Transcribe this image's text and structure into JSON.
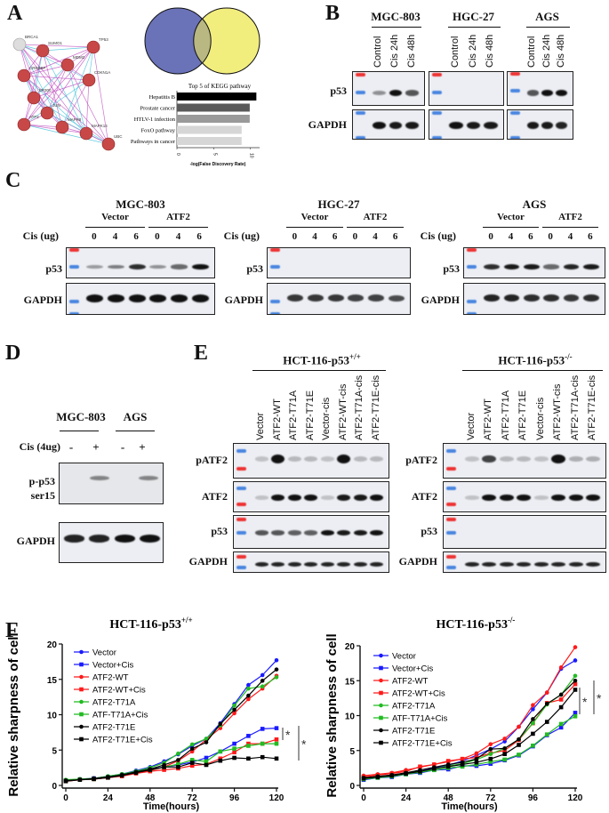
{
  "panelA": {
    "label": "A",
    "network_nodes": [
      "BRCA1",
      "SUMO1",
      "TP53",
      "MDM2",
      "CREBBP",
      "CDKN1A",
      "EP300",
      "JUN",
      "ATF2",
      "MAPK8",
      "MAPK14",
      "UBC"
    ],
    "venn": {
      "left_color": "#6a72b8",
      "right_color": "#f2ee7e",
      "overlap_color": "#b9b882"
    },
    "kegg": {
      "title": "Top 5 of KEGG pathway",
      "xlabel": "-log(False Discovery Rate)",
      "ticks": [
        "0",
        "5",
        "10"
      ],
      "bars": [
        {
          "label": "Hepatitis B",
          "value": 10.8,
          "color": "#000000"
        },
        {
          "label": "Prostate cancer",
          "value": 9.9,
          "color": "#5a5a5a"
        },
        {
          "label": "HTLV-1 infection",
          "value": 9.9,
          "color": "#9a9a9a"
        },
        {
          "label": "FoxO pathway",
          "value": 8.8,
          "color": "#d6d6d6"
        },
        {
          "label": "Pathways in cancer",
          "value": 8.8,
          "color": "#d6d6d6"
        }
      ]
    }
  },
  "panelB": {
    "label": "B",
    "rows": [
      "p53",
      "GAPDH"
    ],
    "groups": [
      {
        "name": "MGC-803",
        "lanes": [
          "Control",
          "Cis 24h",
          "Cis 48h"
        ],
        "p53": [
          0.3,
          0.95,
          0.6
        ],
        "GAPDH": [
          0.95,
          0.9,
          0.9
        ]
      },
      {
        "name": "HGC-27",
        "lanes": [
          "Control",
          "Cis 24h",
          "Cis 48h"
        ],
        "p53": [
          0,
          0,
          0
        ],
        "GAPDH": [
          0.95,
          0.9,
          0.9
        ]
      },
      {
        "name": "AGS",
        "lanes": [
          "Control",
          "Cis 24h",
          "Cis 48h"
        ],
        "p53": [
          0.6,
          0.95,
          0.95
        ],
        "GAPDH": [
          0.9,
          0.9,
          0.85
        ]
      }
    ]
  },
  "panelC": {
    "label": "C",
    "dose_label": "Cis (ug)",
    "rows": [
      "p53",
      "GAPDH"
    ],
    "subgroups": [
      "Vector",
      "ATF2"
    ],
    "doses": [
      "0",
      "4",
      "6",
      "0",
      "4",
      "6"
    ],
    "groups": [
      {
        "name": "MGC-803",
        "p53": [
          0.25,
          0.4,
          0.8,
          0.3,
          0.5,
          1.0
        ],
        "GAPDH": [
          1,
          1,
          1,
          1,
          1,
          1
        ]
      },
      {
        "name": "HGC-27",
        "p53": [
          0,
          0,
          0,
          0,
          0,
          0
        ],
        "GAPDH": [
          0.75,
          0.75,
          0.75,
          0.7,
          0.7,
          0.65
        ]
      },
      {
        "name": "AGS",
        "p53": [
          0.8,
          0.9,
          0.9,
          0.5,
          0.85,
          0.9
        ],
        "GAPDH": [
          0.85,
          0.85,
          0.8,
          0.8,
          0.75,
          0.8
        ]
      }
    ]
  },
  "panelD": {
    "label": "D",
    "groups": [
      "MGC-803",
      "AGS"
    ],
    "dose_label": "Cis (4ug)",
    "treatments": [
      "-",
      "+",
      "-",
      "+"
    ],
    "rows": [
      "p-p53",
      "ser15",
      "GAPDH"
    ],
    "pp53": [
      0,
      0.35,
      0,
      0.35
    ],
    "gapdh": [
      0.85,
      0.85,
      0.95,
      1.0
    ]
  },
  "panelE": {
    "label": "E",
    "lanes": [
      "Vector",
      "ATF2-WT",
      "ATF2-T71A",
      "ATF2-T71E",
      "Vector-cis",
      "ATF2-WT-cis",
      "ATF2-T71A-cis",
      "ATF2-T71E-cis"
    ],
    "rows": [
      "pATF2",
      "ATF2",
      "p53",
      "GAPDH"
    ],
    "groups": [
      {
        "name": "HCT-116-p53",
        "sup": "+/+",
        "pATF2": [
          0.05,
          1,
          0.1,
          0.1,
          0.05,
          1,
          0.1,
          0.1
        ],
        "ATF2": [
          0.05,
          0.95,
          0.95,
          0.95,
          0.05,
          0.9,
          0.9,
          0.95
        ],
        "p53": [
          0.6,
          0.6,
          0.55,
          0.55,
          0.95,
          0.9,
          0.9,
          0.95
        ],
        "GAPDH": [
          0.85,
          0.85,
          0.85,
          0.85,
          0.85,
          0.85,
          0.85,
          0.85
        ]
      },
      {
        "name": "HCT-116-p53",
        "sup": "-/-",
        "pATF2": [
          0.05,
          0.7,
          0.1,
          0.1,
          0.05,
          1,
          0.15,
          0.15
        ],
        "ATF2": [
          0.05,
          0.95,
          0.95,
          0.95,
          0.05,
          0.95,
          0.95,
          0.95
        ],
        "p53": [
          0,
          0,
          0,
          0,
          0,
          0,
          0,
          0
        ],
        "GAPDH": [
          0.85,
          0.85,
          0.85,
          0.85,
          0.85,
          0.85,
          0.85,
          0.85
        ]
      }
    ]
  },
  "panelF": {
    "label": "F"
  },
  "chart_data": [
    {
      "type": "line",
      "title": "HCT-116-p53",
      "title_sup": "+/+",
      "xlabel": "Time(hours)",
      "ylabel": "Relative sharpness of cell",
      "xlim": [
        0,
        120
      ],
      "ylim": [
        0,
        20
      ],
      "xticks": [
        0,
        24,
        48,
        72,
        96,
        120
      ],
      "yticks": [
        0,
        5,
        10,
        15,
        20
      ],
      "legend": "top-left",
      "significance": [
        "*",
        "*"
      ],
      "x": [
        0,
        8,
        16,
        24,
        32,
        40,
        48,
        56,
        64,
        72,
        80,
        88,
        96,
        104,
        112,
        120
      ],
      "series": [
        {
          "name": "Vector",
          "color": "#1a1aff",
          "marker": "circle",
          "values": [
            0.7,
            0.9,
            1.0,
            1.3,
            1.6,
            2.1,
            2.6,
            3.4,
            4.4,
            5.6,
            6.6,
            8.8,
            11.5,
            14.2,
            15.6,
            17.7
          ]
        },
        {
          "name": "Vector+Cis",
          "color": "#1a1aff",
          "marker": "square",
          "values": [
            0.7,
            0.8,
            1.0,
            1.2,
            1.5,
            1.9,
            2.3,
            2.6,
            2.9,
            3.3,
            3.9,
            4.8,
            5.9,
            7.0,
            8.0,
            8.1
          ]
        },
        {
          "name": "ATF2-WT",
          "color": "#ff1a1a",
          "marker": "circle",
          "values": [
            0.6,
            0.8,
            0.9,
            1.1,
            1.4,
            1.8,
            2.1,
            2.6,
            3.5,
            4.8,
            6.5,
            8.1,
            10.2,
            12.2,
            13.7,
            15.5
          ]
        },
        {
          "name": "ATF2-WT+Cis",
          "color": "#ff1a1a",
          "marker": "square",
          "values": [
            0.6,
            0.8,
            0.9,
            1.1,
            1.3,
            1.7,
            2.0,
            2.2,
            2.4,
            2.8,
            3.0,
            3.8,
            4.7,
            5.9,
            5.9,
            6.5
          ]
        },
        {
          "name": "ATF2-T71A",
          "color": "#22bb22",
          "marker": "circle",
          "values": [
            0.8,
            0.9,
            1.0,
            1.3,
            1.6,
            2.0,
            2.5,
            3.2,
            4.5,
            5.8,
            6.6,
            8.5,
            11.3,
            13.7,
            14.0,
            15.3
          ]
        },
        {
          "name": "ATF-T71A+Cis",
          "color": "#22bb22",
          "marker": "square",
          "values": [
            0.7,
            0.8,
            0.9,
            1.2,
            1.5,
            1.9,
            2.2,
            2.6,
            3.0,
            3.6,
            3.4,
            4.8,
            5.2,
            5.6,
            5.9,
            5.9
          ]
        },
        {
          "name": "ATF2-T71E",
          "color": "#000000",
          "marker": "circle",
          "values": [
            0.7,
            0.8,
            1.0,
            1.2,
            1.5,
            1.9,
            2.3,
            2.9,
            3.6,
            5.2,
            6.1,
            8.7,
            10.7,
            12.7,
            14.8,
            16.4
          ]
        },
        {
          "name": "ATF2-T71E+Cis",
          "color": "#000000",
          "marker": "square",
          "values": [
            0.6,
            0.8,
            0.9,
            1.1,
            1.4,
            1.8,
            2.2,
            2.6,
            2.6,
            3.2,
            2.9,
            3.5,
            3.9,
            3.8,
            4.0,
            3.8
          ]
        }
      ]
    },
    {
      "type": "line",
      "title": "HCT-116-p53",
      "title_sup": "-/-",
      "xlabel": "Time(hours)",
      "ylabel": "Relative sharpness of cell",
      "xlim": [
        0,
        120
      ],
      "ylim": [
        0,
        20
      ],
      "xticks": [
        0,
        24,
        48,
        72,
        96,
        120
      ],
      "yticks": [
        0,
        5,
        10,
        15,
        20
      ],
      "legend": "top-left",
      "significance": [
        "*",
        "*"
      ],
      "x": [
        0,
        8,
        16,
        24,
        32,
        40,
        48,
        56,
        64,
        72,
        80,
        88,
        96,
        104,
        112,
        120
      ],
      "series": [
        {
          "name": "Vector",
          "color": "#1a1aff",
          "marker": "circle",
          "values": [
            0.9,
            1.2,
            1.4,
            1.8,
            2.0,
            2.5,
            2.9,
            3.5,
            4.3,
            5.2,
            6.3,
            8.4,
            10.9,
            13.3,
            16.7,
            17.9
          ]
        },
        {
          "name": "Vector+Cis",
          "color": "#1a1aff",
          "marker": "square",
          "values": [
            0.8,
            1.1,
            1.2,
            1.6,
            1.8,
            2.2,
            2.3,
            2.8,
            2.8,
            3.1,
            3.6,
            4.3,
            5.6,
            7.2,
            8.3,
            10.4
          ]
        },
        {
          "name": "ATF2-WT",
          "color": "#ff1a1a",
          "marker": "circle",
          "values": [
            1.4,
            1.6,
            1.8,
            2.2,
            2.6,
            3.0,
            3.4,
            3.8,
            4.6,
            5.9,
            6.7,
            8.4,
            11.5,
            13.3,
            16.9,
            19.8
          ]
        },
        {
          "name": "ATF2-WT+Cis",
          "color": "#ff1a1a",
          "marker": "square",
          "values": [
            1.2,
            1.5,
            1.7,
            2.0,
            2.7,
            3.0,
            3.5,
            3.8,
            4.0,
            4.6,
            5.0,
            6.5,
            8.9,
            11.8,
            12.3,
            14.5
          ]
        },
        {
          "name": "ATF2-T71A",
          "color": "#22bb22",
          "marker": "circle",
          "values": [
            1.0,
            1.3,
            1.4,
            1.8,
            2.0,
            2.4,
            2.8,
            3.1,
            3.7,
            4.5,
            5.3,
            6.6,
            8.9,
            11.6,
            13.0,
            15.7
          ]
        },
        {
          "name": "ATF-T71A+Cis",
          "color": "#22bb22",
          "marker": "square",
          "values": [
            0.9,
            1.1,
            1.3,
            1.6,
            1.9,
            2.2,
            2.5,
            2.7,
            3.0,
            3.4,
            3.7,
            4.4,
            5.7,
            7.3,
            8.8,
            9.9
          ]
        },
        {
          "name": "ATF2-T71E",
          "color": "#000000",
          "marker": "circle",
          "values": [
            1.1,
            1.3,
            1.5,
            1.8,
            2.2,
            2.6,
            3.0,
            3.3,
            3.8,
            5.2,
            5.3,
            6.6,
            9.5,
            11.7,
            13.0,
            15.0
          ]
        },
        {
          "name": "ATF2-T71E+Cis",
          "color": "#000000",
          "marker": "square",
          "values": [
            1.0,
            1.2,
            1.4,
            1.7,
            2.0,
            2.4,
            2.7,
            3.0,
            3.3,
            3.8,
            4.5,
            5.8,
            7.4,
            9.1,
            11.2,
            13.7
          ]
        }
      ]
    }
  ]
}
